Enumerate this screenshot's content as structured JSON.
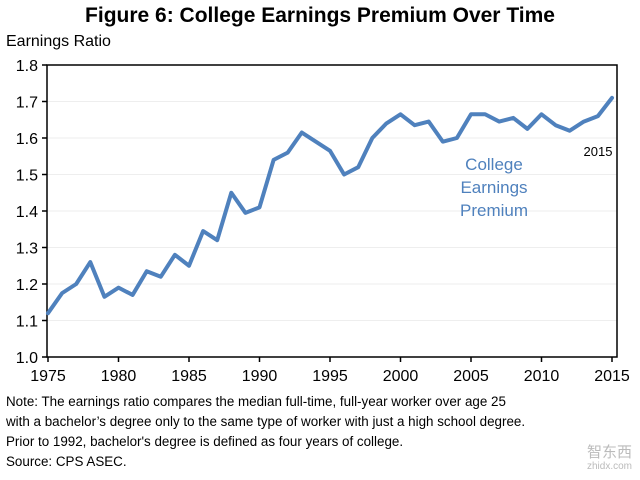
{
  "chart_data": {
    "type": "line",
    "title": "Figure 6: College Earnings Premium Over Time",
    "ylabel": "Earnings Ratio",
    "xlabel": "",
    "ylim": [
      1.0,
      1.8
    ],
    "xlim": [
      1975,
      2015
    ],
    "yticks": [
      "1.0",
      "1.1",
      "1.2",
      "1.3",
      "1.4",
      "1.5",
      "1.6",
      "1.7",
      "1.8"
    ],
    "xticks": [
      "1975",
      "1980",
      "1985",
      "1990",
      "1995",
      "2000",
      "2005",
      "2010",
      "2015"
    ],
    "grid": true,
    "series": [
      {
        "name": "College Earnings Premium",
        "color": "#4F81BD",
        "x": [
          1975,
          1976,
          1977,
          1978,
          1979,
          1980,
          1981,
          1982,
          1983,
          1984,
          1985,
          1986,
          1987,
          1988,
          1989,
          1990,
          1991,
          1992,
          1993,
          1994,
          1995,
          1996,
          1997,
          1998,
          1999,
          2000,
          2001,
          2002,
          2003,
          2004,
          2005,
          2006,
          2007,
          2008,
          2009,
          2010,
          2011,
          2012,
          2013,
          2014,
          2015
        ],
        "values": [
          1.12,
          1.175,
          1.2,
          1.26,
          1.165,
          1.19,
          1.17,
          1.235,
          1.22,
          1.28,
          1.25,
          1.345,
          1.32,
          1.45,
          1.395,
          1.41,
          1.54,
          1.56,
          1.615,
          1.59,
          1.565,
          1.5,
          1.52,
          1.6,
          1.64,
          1.665,
          1.635,
          1.645,
          1.59,
          1.6,
          1.665,
          1.665,
          1.645,
          1.655,
          1.625,
          1.665,
          1.635,
          1.62,
          1.645,
          1.66,
          1.71
        ]
      }
    ],
    "annotations": {
      "series_label": [
        "College",
        "Earnings",
        "Premium"
      ],
      "end_label": "2015"
    }
  },
  "note": [
    "Note: The earnings ratio compares the median full-time, full-year worker over age 25",
    "with a bachelor’s degree only to the same type of worker with just a high school degree.",
    "Prior to 1992, bachelor's degree is defined as four years of college.",
    "Source: CPS ASEC."
  ],
  "watermark": {
    "text": "智东西",
    "sub": "zhidx.com"
  }
}
